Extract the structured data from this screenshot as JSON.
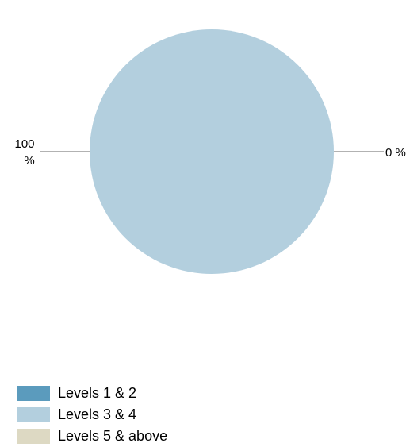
{
  "chart_data": {
    "type": "pie",
    "categories": [
      "Levels 1 & 2",
      "Levels 3 & 4",
      "Levels 5 & above"
    ],
    "values": [
      0,
      100,
      0
    ],
    "colors": [
      "#5b9bbd",
      "#b3cfde",
      "#ddd9c3"
    ],
    "data_labels": {
      "left": {
        "line1": "100",
        "line2": "%"
      },
      "right": "0 %"
    },
    "legend_position": "bottom-left"
  }
}
